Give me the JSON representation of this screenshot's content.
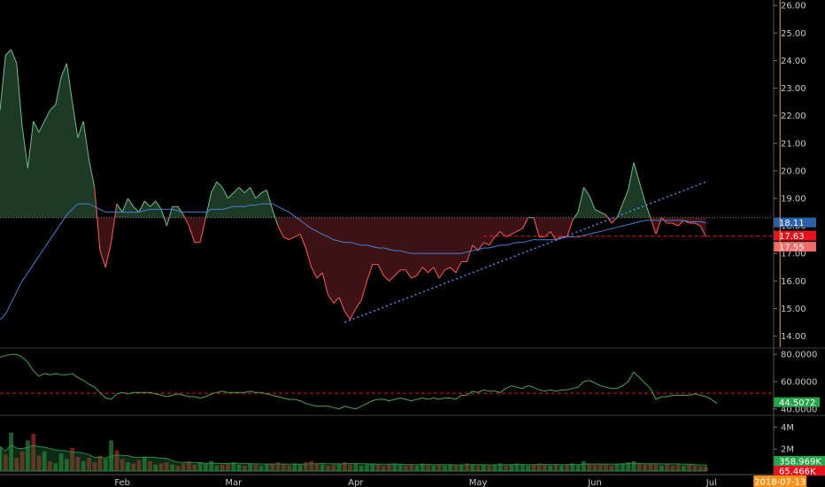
{
  "chart_data": [
    {
      "type": "area",
      "panel": "price",
      "baseline": 18.3,
      "ylim": [
        13.6,
        26.2
      ],
      "y_ticks": [
        "26.00",
        "25.00",
        "24.00",
        "23.00",
        "22.00",
        "21.00",
        "20.00",
        "19.00",
        "18.00",
        "17.00",
        "16.00",
        "15.00",
        "14.00"
      ],
      "price": [
        22.2,
        24.2,
        24.4,
        23.9,
        21.6,
        20.1,
        21.8,
        21.4,
        21.8,
        22.2,
        22.4,
        23.4,
        23.9,
        22.5,
        21.2,
        21.8,
        20.4,
        19.4,
        17.1,
        16.5,
        17.4,
        18.8,
        18.5,
        19.0,
        18.7,
        18.5,
        18.9,
        18.7,
        18.9,
        18.6,
        18.0,
        18.7,
        18.7,
        18.4,
        18.0,
        17.4,
        17.4,
        18.3,
        19.2,
        19.6,
        19.4,
        19.0,
        19.2,
        19.4,
        19.2,
        19.4,
        19.0,
        19.2,
        19.3,
        18.6,
        18.0,
        17.6,
        17.5,
        17.6,
        17.7,
        17.2,
        16.5,
        16.1,
        16.3,
        15.5,
        15.2,
        15.4,
        14.9,
        14.6,
        15.0,
        15.3,
        16.0,
        16.6,
        16.6,
        16.2,
        16.0,
        16.2,
        16.4,
        16.4,
        16.1,
        16.2,
        16.5,
        16.3,
        16.5,
        16.1,
        16.4,
        16.5,
        16.3,
        16.7,
        16.7,
        17.3,
        17.1,
        17.4,
        17.3,
        17.6,
        17.8,
        17.6,
        17.7,
        17.8,
        17.9,
        18.3,
        18.3,
        17.6,
        17.6,
        17.8,
        17.5,
        17.6,
        17.6,
        18.2,
        18.5,
        19.4,
        19.1,
        18.6,
        18.5,
        18.4,
        18.1,
        18.3,
        18.8,
        19.3,
        20.3,
        19.6,
        18.9,
        18.3,
        17.7,
        18.3,
        18.1,
        18.1,
        18.0,
        18.2,
        18.1,
        18.1,
        18.0,
        17.6
      ],
      "ma": [
        14.6,
        14.8,
        15.2,
        15.6,
        16.0,
        16.3,
        16.6,
        16.9,
        17.2,
        17.5,
        17.8,
        18.1,
        18.4,
        18.6,
        18.8,
        18.8,
        18.8,
        18.7,
        18.6,
        18.5,
        18.5,
        18.5,
        18.5,
        18.5,
        18.5,
        18.5,
        18.55,
        18.6,
        18.6,
        18.6,
        18.6,
        18.6,
        18.55,
        18.5,
        18.5,
        18.5,
        18.5,
        18.5,
        18.6,
        18.6,
        18.6,
        18.65,
        18.7,
        18.7,
        18.7,
        18.75,
        18.75,
        18.8,
        18.8,
        18.8,
        18.7,
        18.6,
        18.5,
        18.35,
        18.2,
        18.05,
        17.9,
        17.8,
        17.7,
        17.6,
        17.5,
        17.45,
        17.4,
        17.4,
        17.35,
        17.3,
        17.3,
        17.25,
        17.2,
        17.2,
        17.15,
        17.1,
        17.1,
        17.05,
        17.0,
        17.0,
        17.0,
        17.0,
        17.0,
        17.0,
        17.0,
        17.0,
        17.0,
        17.0,
        17.05,
        17.1,
        17.15,
        17.2,
        17.2,
        17.25,
        17.3,
        17.3,
        17.35,
        17.4,
        17.4,
        17.45,
        17.5,
        17.5,
        17.5,
        17.5,
        17.5,
        17.55,
        17.6,
        17.6,
        17.6,
        17.65,
        17.7,
        17.75,
        17.8,
        17.85,
        17.9,
        17.95,
        18.0,
        18.05,
        18.1,
        18.15,
        18.2,
        18.2,
        18.2,
        18.2,
        18.2,
        18.2,
        18.2,
        18.2,
        18.15,
        18.15,
        18.15,
        18.11
      ],
      "trendline": {
        "from": [
          62,
          14.5
        ],
        "to": [
          127,
          19.6
        ]
      },
      "support_level": 17.63,
      "price_labels": [
        {
          "text": "18.11",
          "value": 18.11,
          "color": "#2962a8"
        },
        {
          "text": "17.63",
          "value": 17.63,
          "color": "#e8121f"
        },
        {
          "text": "17.55",
          "value": 17.55,
          "color": "#f26c6c"
        }
      ]
    },
    {
      "type": "line",
      "panel": "oscillator",
      "ylim": [
        36,
        84
      ],
      "y_ticks": [
        "80.0000",
        "60.0000",
        "40.0000"
      ],
      "values": [
        78,
        79,
        80,
        80,
        78,
        74,
        68,
        64,
        66,
        65,
        66,
        65,
        65,
        66,
        63,
        61,
        58,
        56,
        52,
        48,
        47,
        51,
        52,
        51,
        52,
        52,
        52,
        52,
        51,
        50,
        49,
        50,
        51,
        50,
        49,
        49,
        48,
        49,
        51,
        52,
        53,
        52,
        52,
        52,
        52,
        53,
        52,
        52,
        51,
        50,
        49,
        48,
        47,
        47,
        46,
        44,
        43,
        42,
        42,
        42,
        41,
        40,
        42,
        41,
        40,
        42,
        44,
        46,
        47,
        47,
        46,
        47,
        48,
        47,
        46,
        47,
        48,
        47,
        48,
        47,
        48,
        48,
        47,
        50,
        50,
        53,
        52,
        54,
        53,
        53,
        52,
        55,
        57,
        56,
        55,
        57,
        56,
        54,
        53,
        54,
        53,
        54,
        54,
        55,
        56,
        60,
        61,
        59,
        57,
        56,
        55,
        55,
        57,
        60,
        67,
        63,
        59,
        55,
        47,
        49,
        49,
        50,
        50,
        50,
        50,
        51,
        50,
        49,
        47,
        44
      ],
      "dashed_level": 51.5,
      "value_label": {
        "text": "44.5072",
        "color": "#26a64a"
      }
    },
    {
      "type": "bar",
      "panel": "volume",
      "ylim": [
        0,
        5000
      ],
      "y_ticks": [
        "4M",
        "2M"
      ],
      "values": [
        2200,
        1500,
        3500,
        1200,
        1800,
        2800,
        3400,
        1400,
        1800,
        900,
        700,
        1600,
        1100,
        2100,
        1300,
        900,
        1200,
        800,
        1400,
        1100,
        2800,
        1900,
        1100,
        800,
        700,
        1000,
        1300,
        900,
        600,
        700,
        800,
        600,
        500,
        700,
        900,
        600,
        800,
        700,
        900,
        500,
        600,
        700,
        800,
        600,
        500,
        700,
        600,
        500,
        600,
        700,
        800,
        600,
        500,
        700,
        600,
        800,
        900,
        700,
        600,
        500,
        600,
        700,
        800,
        600,
        700,
        500,
        600,
        700,
        600,
        500,
        600,
        700,
        600,
        500,
        600,
        500,
        700,
        600,
        500,
        600,
        500,
        600,
        500,
        600,
        700,
        600,
        500,
        600,
        500,
        600,
        700,
        500,
        600,
        700,
        600,
        500,
        600,
        700,
        600,
        500,
        600,
        500,
        600,
        700,
        600,
        900,
        700,
        600,
        700,
        600,
        500,
        600,
        700,
        800,
        900,
        700,
        600,
        700,
        600,
        500,
        600,
        500,
        600,
        500,
        600,
        500,
        400,
        350
      ],
      "direction": [
        1,
        -1,
        1,
        -1,
        -1,
        1,
        -1,
        -1,
        1,
        -1,
        1,
        1,
        1,
        -1,
        -1,
        1,
        -1,
        -1,
        -1,
        1,
        1,
        -1,
        -1,
        1,
        -1,
        -1,
        1,
        -1,
        1,
        -1,
        -1,
        1,
        -1,
        -1,
        -1,
        -1,
        1,
        1,
        1,
        1,
        -1,
        -1,
        1,
        1,
        -1,
        1,
        -1,
        1,
        1,
        -1,
        -1,
        -1,
        -1,
        1,
        1,
        -1,
        -1,
        -1,
        1,
        -1,
        -1,
        1,
        -1,
        -1,
        1,
        1,
        1,
        1,
        -1,
        -1,
        -1,
        1,
        1,
        -1,
        -1,
        1,
        1,
        -1,
        1,
        -1,
        1,
        1,
        -1,
        1,
        -1,
        1,
        -1,
        1,
        -1,
        1,
        1,
        -1,
        1,
        1,
        1,
        1,
        -1,
        -1,
        -1,
        1,
        -1,
        1,
        -1,
        1,
        1,
        1,
        -1,
        -1,
        -1,
        -1,
        -1,
        1,
        1,
        1,
        1,
        -1,
        -1,
        -1,
        -1,
        1,
        -1,
        -1,
        -1,
        1,
        -1,
        -1,
        -1,
        -1,
        -1,
        -1
      ],
      "value_labels": [
        {
          "text": "358.969K",
          "color": "#26a64a"
        },
        {
          "text": "65.466K",
          "color": "#e8121f"
        }
      ]
    }
  ],
  "x_axis": {
    "months": [
      {
        "label": "Feb",
        "index": 22
      },
      {
        "label": "Mar",
        "index": 42
      },
      {
        "label": "Apr",
        "index": 64
      },
      {
        "label": "May",
        "index": 86
      },
      {
        "label": "Jun",
        "index": 107
      },
      {
        "label": "Jul",
        "index": 128
      }
    ],
    "crosshair_date": "2018-07-13",
    "crosshair_index": 140
  },
  "colors": {
    "up_fill": "#1d3a27",
    "up_line": "#6fbf86",
    "down_fill": "#3d1214",
    "down_line": "#ff5a5a",
    "ma_line": "#4a7fd1",
    "trend_line": "#4a8fe8",
    "crosshair": "#f49a6a",
    "grid": "#3a3a3a",
    "vol_up": "#1f5c2c",
    "vol_down": "#7a1a1a",
    "osc_line": "#4aa84a",
    "axis_text": "#c8c8c8"
  }
}
